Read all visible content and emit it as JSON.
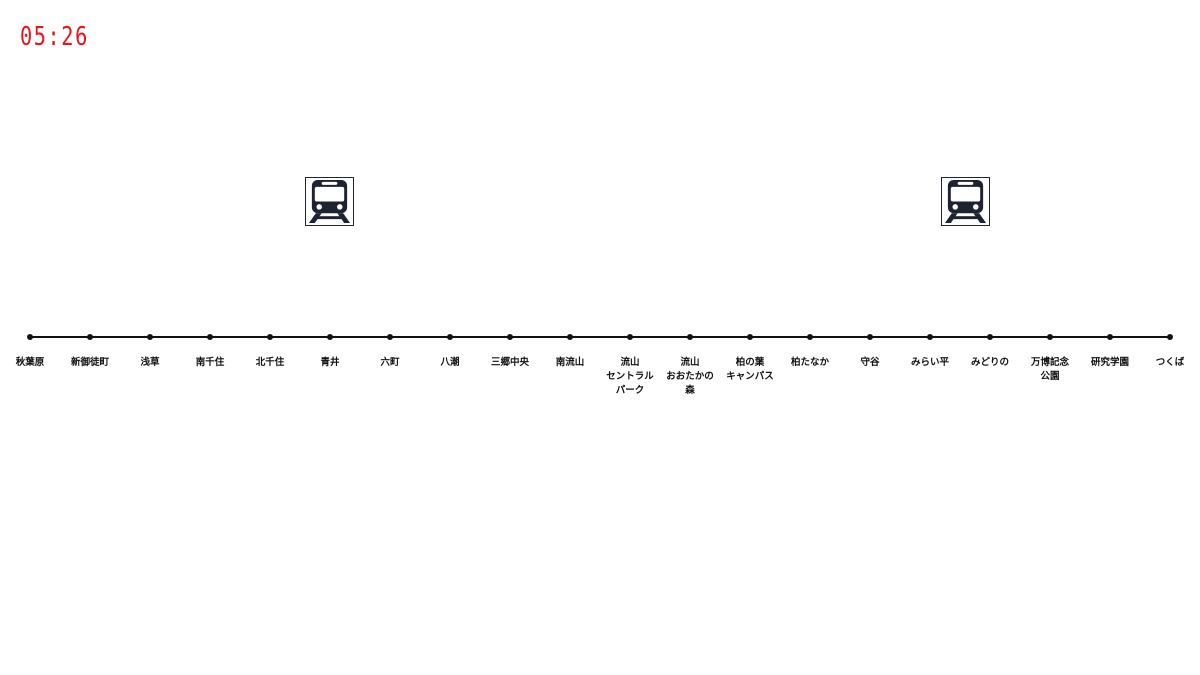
{
  "clock": {
    "time": "05:26",
    "color": "#e8151b"
  },
  "colors": {
    "line": "#111111",
    "text": "#111111",
    "train": "#1d2333"
  },
  "icons": {
    "train": "train-front-icon"
  },
  "stations": [
    {
      "label": "秋葉原"
    },
    {
      "label": "新御徒町"
    },
    {
      "label": "浅草"
    },
    {
      "label": "南千住"
    },
    {
      "label": "北千住"
    },
    {
      "label": "青井"
    },
    {
      "label": "六町"
    },
    {
      "label": "八潮"
    },
    {
      "label": "三郷中央"
    },
    {
      "label": "南流山"
    },
    {
      "label": "流山\nセントラル\nパーク"
    },
    {
      "label": "流山\nおおたかの\n森"
    },
    {
      "label": "柏の葉\nキャンパス"
    },
    {
      "label": "柏たなか"
    },
    {
      "label": "守谷"
    },
    {
      "label": "みらい平"
    },
    {
      "label": "みどりの"
    },
    {
      "label": "万博記念\n公園"
    },
    {
      "label": "研究学園"
    },
    {
      "label": "つくば"
    }
  ],
  "trains": [
    {
      "station_index": 5
    },
    {
      "station_index": 15.6
    }
  ]
}
